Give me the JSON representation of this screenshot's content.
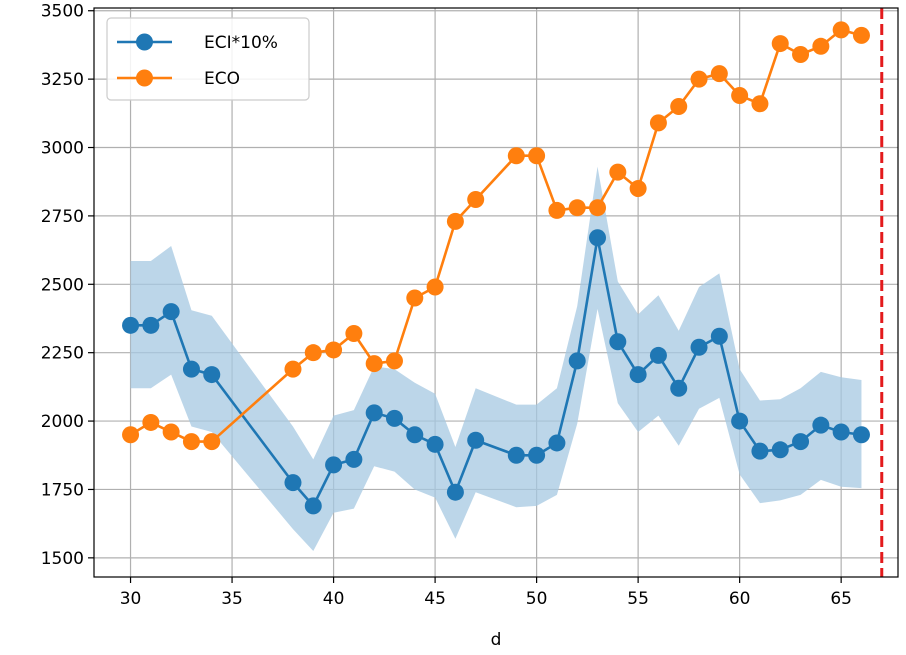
{
  "chart_data": {
    "type": "line",
    "title": "",
    "xlabel": "d",
    "ylabel": "",
    "xlim": [
      28.2,
      67.8
    ],
    "ylim": [
      1430,
      3510
    ],
    "grid": true,
    "x_ticks": [
      30,
      35,
      40,
      45,
      50,
      55,
      60,
      65
    ],
    "y_ticks": [
      1500,
      1750,
      2000,
      2250,
      2500,
      2750,
      3000,
      3250,
      3500
    ],
    "legend": {
      "location": "upper-left",
      "entries": [
        "ECI*10%",
        "ECO"
      ]
    },
    "vline": {
      "x": 67,
      "color": "#e31a1c",
      "style": "dashed"
    },
    "series": [
      {
        "name": "ECI*10%",
        "color": "#1f77b4",
        "band_color": "#a6c8e1",
        "x": [
          30,
          31,
          32,
          33,
          34,
          38,
          39,
          40,
          41,
          42,
          43,
          44,
          45,
          46,
          47,
          49,
          50,
          51,
          52,
          53,
          54,
          55,
          56,
          57,
          58,
          59,
          60,
          61,
          62,
          63,
          64,
          65,
          66
        ],
        "y": [
          2350,
          2350,
          2400,
          2190,
          2170,
          1775,
          1690,
          1840,
          1860,
          2030,
          2010,
          1950,
          1915,
          1740,
          1930,
          1875,
          1875,
          1920,
          2220,
          2670,
          2290,
          2170,
          2240,
          2120,
          2270,
          2310,
          2000,
          1890,
          1895,
          1925,
          1985,
          1960,
          1950
        ],
        "upper": [
          2585,
          2585,
          2640,
          2405,
          2385,
          1980,
          1860,
          2020,
          2040,
          2200,
          2190,
          2140,
          2100,
          1905,
          2120,
          2060,
          2060,
          2120,
          2420,
          2930,
          2510,
          2390,
          2460,
          2330,
          2490,
          2540,
          2190,
          2075,
          2080,
          2120,
          2180,
          2160,
          2150
        ],
        "lower": [
          2120,
          2120,
          2170,
          1980,
          1960,
          1605,
          1525,
          1665,
          1680,
          1835,
          1815,
          1750,
          1720,
          1570,
          1740,
          1685,
          1690,
          1730,
          1990,
          2410,
          2065,
          1960,
          2020,
          1910,
          2045,
          2085,
          1805,
          1700,
          1710,
          1730,
          1785,
          1760,
          1755
        ]
      },
      {
        "name": "ECO",
        "color": "#ff7f0e",
        "x": [
          30,
          31,
          32,
          33,
          34,
          38,
          39,
          40,
          41,
          42,
          43,
          44,
          45,
          46,
          47,
          49,
          50,
          51,
          52,
          53,
          54,
          55,
          56,
          57,
          58,
          59,
          60,
          61,
          62,
          63,
          64,
          65,
          66
        ],
        "y": [
          1950,
          1995,
          1960,
          1925,
          1925,
          2190,
          2250,
          2260,
          2320,
          2210,
          2220,
          2450,
          2490,
          2730,
          2810,
          2970,
          2970,
          2770,
          2780,
          2780,
          2910,
          2850,
          3090,
          3150,
          3250,
          3270,
          3190,
          3160,
          3380,
          3340,
          3370,
          3430,
          3410
        ]
      }
    ]
  }
}
